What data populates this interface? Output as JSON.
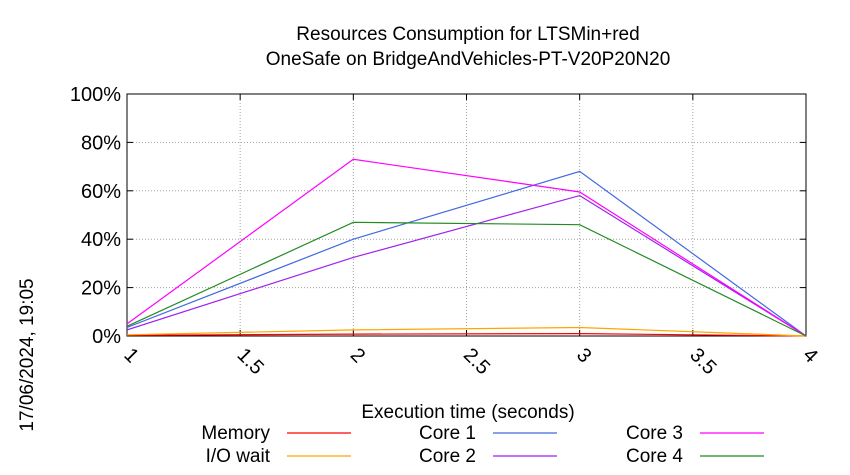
{
  "chart_data": {
    "type": "line",
    "title_line1": "Resources Consumption for LTSMin+red",
    "title_line2": "OneSafe on BridgeAndVehicles-PT-V20P20N20",
    "xlabel": "Execution time (seconds)",
    "ylabel": "",
    "xlim": [
      1,
      4
    ],
    "ylim": [
      0,
      100
    ],
    "x_ticks": [
      1,
      1.5,
      2,
      2.5,
      3,
      3.5,
      4
    ],
    "x_tick_labels": [
      "1",
      "1.5",
      "2",
      "2.5",
      "3",
      "3.5",
      "4"
    ],
    "y_ticks": [
      0,
      20,
      40,
      60,
      80,
      100
    ],
    "y_tick_labels": [
      "0%",
      "20%",
      "40%",
      "60%",
      "80%",
      "100%"
    ],
    "grid": true,
    "legend_position": "bottom",
    "timestamp": "17/06/2024, 19:05",
    "series": [
      {
        "name": "Memory",
        "color": "#ff0000",
        "x": [
          1,
          2,
          3,
          4
        ],
        "y": [
          0.3,
          0.8,
          1.0,
          0
        ]
      },
      {
        "name": "I/O wait",
        "color": "#ffa500",
        "x": [
          1,
          2,
          3,
          4
        ],
        "y": [
          0.5,
          2.5,
          3.5,
          0
        ]
      },
      {
        "name": "Core 1",
        "color": "#4169e1",
        "x": [
          1,
          2,
          3,
          4
        ],
        "y": [
          3.5,
          40,
          68,
          0
        ]
      },
      {
        "name": "Core 2",
        "color": "#a020f0",
        "x": [
          1,
          2,
          3,
          4
        ],
        "y": [
          2.5,
          32.5,
          58,
          0
        ]
      },
      {
        "name": "Core 3",
        "color": "#ff00ff",
        "x": [
          1,
          2,
          3,
          4
        ],
        "y": [
          5,
          73,
          59.5,
          0
        ]
      },
      {
        "name": "Core 4",
        "color": "#228b22",
        "x": [
          1,
          2,
          3,
          4
        ],
        "y": [
          4,
          47,
          46,
          0
        ]
      }
    ]
  }
}
